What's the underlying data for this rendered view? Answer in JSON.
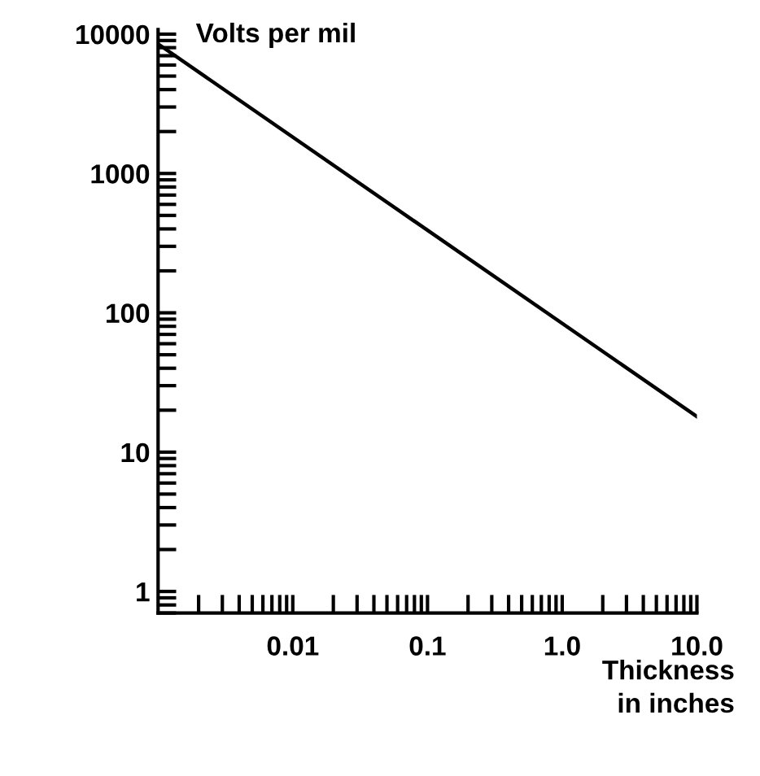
{
  "chart_data": {
    "type": "line",
    "xlabel": "Thickness\nin inches",
    "ylabel": "Volts per mil",
    "log": "xy",
    "x": [
      0.001,
      10
    ],
    "series": [
      {
        "color": "#000000",
        "values": [
          8500,
          18
        ]
      }
    ],
    "xlim": [
      0.001,
      10
    ],
    "ylim": [
      0.7,
      10800
    ],
    "xticks": [
      0.01,
      0.1,
      {
        "value": 1,
        "label": "1.0"
      },
      {
        "value": 10,
        "label": "10.0"
      }
    ],
    "yticks": [
      1,
      10,
      100,
      1000,
      10000
    ],
    "grid": false,
    "legend": false,
    "marker": "none",
    "line_style": "solid"
  }
}
